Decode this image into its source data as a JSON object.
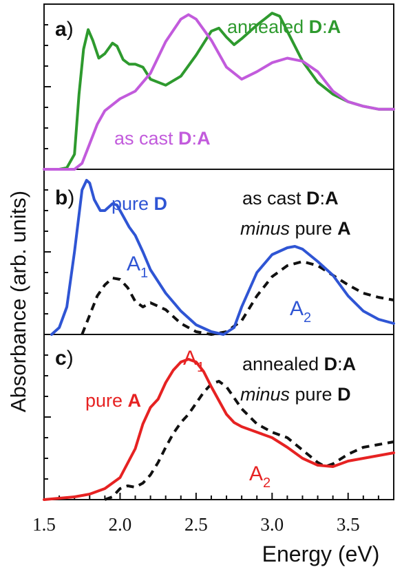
{
  "figure": {
    "ylabel": "Absorbance (arb. units)",
    "xlabel": "Energy (eV)",
    "x_ticks": [
      "1.5",
      "2.0",
      "2.5",
      "3.0",
      "3.5"
    ],
    "x_tick_values": [
      1.5,
      2.0,
      2.5,
      3.0,
      3.5
    ],
    "xlim": [
      1.5,
      3.8
    ]
  },
  "panels": [
    {
      "letter": "a",
      "paren": ")",
      "labels": {
        "annealed_word": "annealed ",
        "annealed_d": "D",
        "annealed_colon": ":",
        "annealed_a": "A",
        "ascast_word": "as cast ",
        "ascast_d": "D",
        "ascast_colon": ":",
        "ascast_a": "A"
      }
    },
    {
      "letter": "b",
      "paren": ")",
      "labels": {
        "pure_word": "pure ",
        "pure_d": "D",
        "line1_word": "as cast ",
        "line1_d": "D",
        "line1_colon": ":",
        "line1_a": "A",
        "line2_minus": "minus",
        "line2_word": " pure ",
        "line2_a": "A",
        "a1_main": "A",
        "a1_sub": "1",
        "a2_main": "A",
        "a2_sub": "2"
      }
    },
    {
      "letter": "c",
      "paren": ")",
      "labels": {
        "pure_word": "pure ",
        "pure_a": "A",
        "line1_word": "annealed ",
        "line1_d": "D",
        "line1_colon": ":",
        "line1_a": "A",
        "line2_minus": "minus",
        "line2_word": " pure ",
        "line2_d": "D",
        "a1_main": "A",
        "a1_sub": "1",
        "a2_main": "A",
        "a2_sub": "2"
      }
    }
  ],
  "chart_data": [
    {
      "type": "line",
      "panel": "a",
      "xlim": [
        1.5,
        3.8
      ],
      "ylim": [
        0,
        1.1
      ],
      "series": [
        {
          "name": "annealed D:A",
          "color": "#2e9a2e",
          "style": "solid",
          "x": [
            1.5,
            1.6,
            1.65,
            1.7,
            1.73,
            1.76,
            1.79,
            1.82,
            1.86,
            1.9,
            1.95,
            1.98,
            2.02,
            2.06,
            2.1,
            2.15,
            2.2,
            2.3,
            2.4,
            2.5,
            2.6,
            2.65,
            2.7,
            2.75,
            2.8,
            2.9,
            3.0,
            3.05,
            3.1,
            3.2,
            3.3,
            3.4,
            3.5,
            3.6,
            3.7,
            3.8
          ],
          "y": [
            0,
            0,
            0.01,
            0.1,
            0.5,
            0.8,
            0.93,
            0.86,
            0.74,
            0.77,
            0.84,
            0.82,
            0.73,
            0.7,
            0.7,
            0.68,
            0.6,
            0.56,
            0.62,
            0.76,
            0.92,
            0.94,
            0.88,
            0.83,
            0.87,
            0.96,
            1.04,
            1.02,
            0.92,
            0.72,
            0.58,
            0.5,
            0.45,
            0.42,
            0.4,
            0.4
          ]
        },
        {
          "name": "as cast D:A",
          "color": "#c25bdc",
          "style": "solid",
          "x": [
            1.5,
            1.7,
            1.75,
            1.8,
            1.85,
            1.9,
            2.0,
            2.1,
            2.2,
            2.3,
            2.4,
            2.45,
            2.5,
            2.6,
            2.7,
            2.8,
            2.9,
            3.0,
            3.1,
            3.2,
            3.3,
            3.4,
            3.5,
            3.6,
            3.7,
            3.8
          ],
          "y": [
            0,
            0,
            0.04,
            0.17,
            0.3,
            0.39,
            0.47,
            0.52,
            0.64,
            0.85,
            1.0,
            1.03,
            1.0,
            0.86,
            0.68,
            0.6,
            0.65,
            0.71,
            0.74,
            0.72,
            0.65,
            0.52,
            0.45,
            0.42,
            0.4,
            0.4
          ]
        }
      ]
    },
    {
      "type": "line",
      "panel": "b",
      "xlim": [
        1.5,
        3.8
      ],
      "ylim": [
        0,
        1.2
      ],
      "series": [
        {
          "name": "pure D",
          "color": "#2f55d4",
          "style": "solid",
          "x": [
            1.55,
            1.6,
            1.65,
            1.7,
            1.75,
            1.78,
            1.8,
            1.83,
            1.87,
            1.9,
            1.95,
            1.98,
            2.02,
            2.06,
            2.1,
            2.15,
            2.2,
            2.3,
            2.4,
            2.5,
            2.6,
            2.68,
            2.75,
            2.8,
            2.9,
            3.0,
            3.1,
            3.15,
            3.2,
            3.3,
            3.4,
            3.5,
            3.6,
            3.7,
            3.8
          ],
          "y": [
            0,
            0.05,
            0.2,
            0.6,
            1.05,
            1.12,
            1.1,
            0.98,
            0.9,
            0.9,
            0.95,
            0.94,
            0.86,
            0.78,
            0.72,
            0.6,
            0.47,
            0.3,
            0.17,
            0.07,
            0.02,
            0.0,
            0.05,
            0.2,
            0.45,
            0.58,
            0.63,
            0.64,
            0.62,
            0.53,
            0.43,
            0.28,
            0.17,
            0.11,
            0.08
          ]
        },
        {
          "name": "as cast D:A minus pure A",
          "color": "#111111",
          "style": "dashed",
          "x": [
            1.75,
            1.8,
            1.85,
            1.9,
            1.95,
            2.0,
            2.05,
            2.1,
            2.15,
            2.2,
            2.3,
            2.4,
            2.5,
            2.6,
            2.7,
            2.8,
            2.9,
            3.0,
            3.1,
            3.2,
            3.3,
            3.4,
            3.5,
            3.6,
            3.7,
            3.8
          ],
          "y": [
            0,
            0.14,
            0.28,
            0.36,
            0.41,
            0.4,
            0.34,
            0.24,
            0.2,
            0.23,
            0.18,
            0.08,
            0.02,
            0.0,
            0.02,
            0.1,
            0.28,
            0.42,
            0.5,
            0.53,
            0.5,
            0.43,
            0.36,
            0.3,
            0.27,
            0.25
          ]
        }
      ]
    },
    {
      "type": "line",
      "panel": "c",
      "xlim": [
        1.5,
        3.8
      ],
      "ylim": [
        0,
        1.2
      ],
      "series": [
        {
          "name": "pure A",
          "color": "#e62222",
          "style": "solid",
          "x": [
            1.5,
            1.6,
            1.7,
            1.8,
            1.9,
            2.0,
            2.1,
            2.15,
            2.2,
            2.25,
            2.3,
            2.35,
            2.4,
            2.45,
            2.5,
            2.55,
            2.6,
            2.65,
            2.7,
            2.75,
            2.8,
            2.9,
            3.0,
            3.1,
            3.2,
            3.3,
            3.4,
            3.5,
            3.6,
            3.7,
            3.8
          ],
          "y": [
            0,
            0.01,
            0.02,
            0.04,
            0.08,
            0.16,
            0.37,
            0.55,
            0.67,
            0.73,
            0.85,
            0.94,
            1.0,
            1.02,
            1.0,
            0.93,
            0.82,
            0.72,
            0.62,
            0.56,
            0.53,
            0.49,
            0.45,
            0.38,
            0.3,
            0.25,
            0.24,
            0.28,
            0.3,
            0.32,
            0.34
          ]
        },
        {
          "name": "annealed D:A minus pure D",
          "color": "#111111",
          "style": "dashed",
          "x": [
            1.9,
            1.95,
            2.0,
            2.05,
            2.1,
            2.15,
            2.2,
            2.25,
            2.3,
            2.35,
            2.4,
            2.45,
            2.5,
            2.55,
            2.6,
            2.65,
            2.7,
            2.75,
            2.8,
            2.9,
            3.0,
            3.1,
            3.2,
            3.3,
            3.35,
            3.4,
            3.5,
            3.6,
            3.7,
            3.8
          ],
          "y": [
            0,
            0.02,
            0.08,
            0.1,
            0.09,
            0.12,
            0.18,
            0.27,
            0.38,
            0.48,
            0.56,
            0.62,
            0.7,
            0.78,
            0.84,
            0.86,
            0.82,
            0.74,
            0.66,
            0.55,
            0.49,
            0.45,
            0.36,
            0.27,
            0.24,
            0.26,
            0.33,
            0.38,
            0.4,
            0.42
          ]
        }
      ]
    }
  ]
}
